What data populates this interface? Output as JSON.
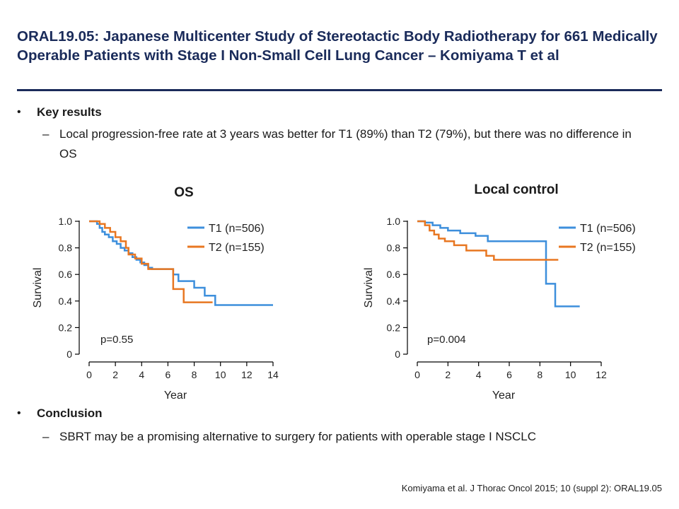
{
  "slide": {
    "title": "ORAL19.05: Japanese Multicenter Study of Stereotactic Body Radiotherapy for 661 Medically Operable Patients with Stage I Non-Small Cell Lung Cancer – Komiyama T et al",
    "key_results_heading": "Key results",
    "key_results_text": "Local progression-free rate at 3 years was better for T1 (89%) than T2 (79%), but there was no difference in OS",
    "conclusion_heading": "Conclusion",
    "conclusion_text": "SBRT may be a promising alternative to surgery for patients with operable stage I NSCLC",
    "footnote": "Komiyama et al. J Thorac Oncol 2015; 10 (suppl 2): ORAL19.05",
    "bullet_glyph": "•",
    "dash_glyph": "–"
  },
  "colors": {
    "title": "#1a2b5a",
    "t1": "#3d8fdc",
    "t2": "#e87722"
  },
  "chart_data": [
    {
      "type": "line",
      "title": "OS",
      "xlabel": "Year",
      "ylabel": "Survival",
      "xlim": [
        0,
        14
      ],
      "ylim": [
        0,
        1
      ],
      "xticks": [
        0,
        2,
        4,
        6,
        8,
        10,
        12,
        14
      ],
      "yticks": [
        0,
        0.2,
        0.4,
        0.6,
        0.8,
        1.0
      ],
      "ytick_labels": [
        "0",
        "0.2",
        "0.4",
        "0.6",
        "0.8",
        "1.0"
      ],
      "step": true,
      "annotation": "p=0.55",
      "legend": "top-right",
      "series": [
        {
          "name": "T1 (n=506)",
          "color": "#3d8fdc",
          "x": [
            0,
            0.6,
            0.8,
            1.0,
            1.2,
            1.5,
            1.8,
            2.1,
            2.4,
            2.7,
            3.0,
            3.3,
            3.6,
            3.9,
            4.2,
            4.5,
            4.8,
            5.1,
            5.4,
            5.7,
            6.4,
            6.8,
            8.0,
            8.8,
            9.6,
            14.0
          ],
          "y": [
            1.0,
            0.98,
            0.95,
            0.92,
            0.9,
            0.88,
            0.85,
            0.83,
            0.8,
            0.78,
            0.76,
            0.73,
            0.71,
            0.69,
            0.67,
            0.65,
            0.64,
            0.64,
            0.64,
            0.64,
            0.6,
            0.55,
            0.5,
            0.44,
            0.37,
            0.37
          ]
        },
        {
          "name": "T2 (n=155)",
          "color": "#e87722",
          "x": [
            0,
            0.8,
            1.2,
            1.6,
            2.0,
            2.4,
            2.8,
            3.0,
            3.5,
            4.0,
            4.5,
            6.4,
            7.2,
            9.4
          ],
          "y": [
            1.0,
            0.98,
            0.95,
            0.92,
            0.88,
            0.85,
            0.8,
            0.75,
            0.72,
            0.68,
            0.64,
            0.49,
            0.39,
            0.39
          ]
        }
      ]
    },
    {
      "type": "line",
      "title": "Local control",
      "xlabel": "Year",
      "ylabel": "Survival",
      "xlim": [
        0,
        12
      ],
      "ylim": [
        0,
        1
      ],
      "xticks": [
        0,
        2,
        4,
        6,
        8,
        10,
        12
      ],
      "yticks": [
        0,
        0.2,
        0.4,
        0.6,
        0.8,
        1.0
      ],
      "ytick_labels": [
        "0",
        "0.2",
        "0.4",
        "0.6",
        "0.8",
        "1.0"
      ],
      "step": true,
      "annotation": "p=0.004",
      "legend": "top-right",
      "series": [
        {
          "name": "T1 (n=506)",
          "color": "#3d8fdc",
          "x": [
            0,
            0.5,
            1.0,
            1.5,
            2.0,
            2.8,
            3.8,
            4.6,
            8.4,
            8.7,
            9.0,
            10.6
          ],
          "y": [
            1.0,
            0.99,
            0.97,
            0.95,
            0.93,
            0.91,
            0.89,
            0.85,
            0.53,
            0.53,
            0.36,
            0.36
          ]
        },
        {
          "name": "T2 (n=155)",
          "color": "#e87722",
          "x": [
            0,
            0.5,
            0.8,
            1.1,
            1.4,
            1.8,
            2.4,
            3.2,
            4.5,
            5.0,
            9.2
          ],
          "y": [
            1.0,
            0.97,
            0.93,
            0.9,
            0.87,
            0.85,
            0.82,
            0.78,
            0.74,
            0.71,
            0.71
          ]
        }
      ]
    }
  ]
}
